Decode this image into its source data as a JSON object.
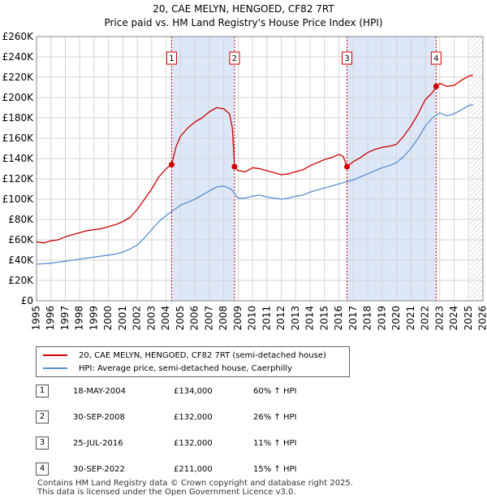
{
  "chart_data": {
    "type": "line",
    "title": "20, CAE MELYN, HENGOED, CF82 7RT",
    "subtitle": "Price paid vs. HM Land Registry's House Price Index (HPI)",
    "xlim": [
      1995,
      2026
    ],
    "ylim": [
      0,
      260000
    ],
    "y_ticks": [
      0,
      20000,
      40000,
      60000,
      80000,
      100000,
      120000,
      140000,
      160000,
      180000,
      200000,
      220000,
      240000,
      260000
    ],
    "y_tick_labels": [
      "£0",
      "£20K",
      "£40K",
      "£60K",
      "£80K",
      "£100K",
      "£120K",
      "£140K",
      "£160K",
      "£180K",
      "£200K",
      "£220K",
      "£240K",
      "£260K"
    ],
    "x_ticks": [
      1995,
      1996,
      1997,
      1998,
      1999,
      2000,
      2001,
      2002,
      2003,
      2004,
      2005,
      2006,
      2007,
      2008,
      2009,
      2010,
      2011,
      2012,
      2013,
      2014,
      2015,
      2016,
      2017,
      2018,
      2019,
      2020,
      2021,
      2022,
      2023,
      2024,
      2025,
      2026
    ],
    "x_tick_labels": [
      "1995",
      "1996",
      "1997",
      "1998",
      "1999",
      "2000",
      "2001",
      "2002",
      "2003",
      "2004",
      "2005",
      "2006",
      "2007",
      "2008",
      "2009",
      "2010",
      "2011",
      "2012",
      "2013",
      "2014",
      "2015",
      "2016",
      "2017",
      "2018",
      "2019",
      "2020",
      "2021",
      "2022",
      "2023",
      "2024",
      "2025",
      "2026"
    ],
    "grid": true,
    "shaded_periods": [
      [
        2004.38,
        2008.75
      ],
      [
        2016.56,
        2022.75
      ]
    ],
    "future_hatch_from": 2025.1,
    "series": [
      {
        "name": "20, CAE MELYN, HENGOED, CF82 7RT (semi-detached house)",
        "color": "#cc0000",
        "x": [
          1995.0,
          1995.5,
          1996.0,
          1996.5,
          1997.0,
          1997.5,
          1998.0,
          1998.5,
          1999.0,
          1999.5,
          2000.0,
          2000.5,
          2001.0,
          2001.5,
          2002.0,
          2002.5,
          2003.0,
          2003.5,
          2004.0,
          2004.38,
          2004.38,
          2004.7,
          2005.0,
          2005.5,
          2006.0,
          2006.5,
          2007.0,
          2007.5,
          2008.0,
          2008.4,
          2008.6,
          2008.75,
          2008.75,
          2009.0,
          2009.5,
          2010.0,
          2010.5,
          2011.0,
          2011.5,
          2012.0,
          2012.5,
          2013.0,
          2013.5,
          2014.0,
          2014.5,
          2015.0,
          2015.5,
          2016.0,
          2016.3,
          2016.56,
          2016.56,
          2017.0,
          2017.5,
          2018.0,
          2018.5,
          2019.0,
          2019.5,
          2020.0,
          2020.5,
          2021.0,
          2021.5,
          2022.0,
          2022.5,
          2022.75,
          2022.75,
          2023.0,
          2023.5,
          2024.0,
          2024.5,
          2025.0,
          2025.3
        ],
        "values": [
          58000,
          57000,
          59000,
          60000,
          63000,
          65000,
          67000,
          69000,
          70000,
          71000,
          73000,
          75000,
          78000,
          82000,
          90000,
          100000,
          110000,
          122000,
          130000,
          134000,
          134000,
          152000,
          162000,
          170000,
          176000,
          180000,
          186000,
          190000,
          189000,
          184000,
          170000,
          132000,
          132000,
          128000,
          127000,
          131000,
          130000,
          128000,
          126000,
          124000,
          125000,
          127000,
          129000,
          133000,
          136000,
          139000,
          141000,
          144000,
          142000,
          132000,
          132000,
          137000,
          141000,
          146000,
          149000,
          151000,
          152000,
          154000,
          162000,
          172000,
          184000,
          198000,
          205000,
          211000,
          211000,
          214000,
          211000,
          212000,
          217000,
          221000,
          222000
        ]
      },
      {
        "name": "HPI: Average price, semi-detached house, Caerphilly",
        "color": "#5b8fd0",
        "x": [
          1995.0,
          1995.5,
          1996.0,
          1996.5,
          1997.0,
          1997.5,
          1998.0,
          1998.5,
          1999.0,
          1999.5,
          2000.0,
          2000.5,
          2001.0,
          2001.5,
          2002.0,
          2002.5,
          2003.0,
          2003.5,
          2004.0,
          2004.5,
          2005.0,
          2005.5,
          2006.0,
          2006.5,
          2007.0,
          2007.5,
          2008.0,
          2008.5,
          2009.0,
          2009.5,
          2010.0,
          2010.5,
          2011.0,
          2011.5,
          2012.0,
          2012.5,
          2013.0,
          2013.5,
          2014.0,
          2014.5,
          2015.0,
          2015.5,
          2016.0,
          2016.5,
          2017.0,
          2017.5,
          2018.0,
          2018.5,
          2019.0,
          2019.5,
          2020.0,
          2020.5,
          2021.0,
          2021.5,
          2022.0,
          2022.5,
          2023.0,
          2023.5,
          2024.0,
          2024.5,
          2025.0,
          2025.3
        ],
        "values": [
          36000,
          36500,
          37000,
          38000,
          39000,
          40000,
          41000,
          42000,
          43000,
          44000,
          45000,
          46000,
          48000,
          51000,
          55000,
          62000,
          70000,
          78000,
          84000,
          89000,
          94000,
          97000,
          100000,
          104000,
          108000,
          112000,
          113000,
          110000,
          101000,
          101000,
          103000,
          104000,
          102000,
          101000,
          100000,
          101000,
          103000,
          104000,
          107000,
          109000,
          111000,
          113000,
          115000,
          117000,
          119000,
          122000,
          125000,
          128000,
          131000,
          133000,
          136000,
          142000,
          150000,
          160000,
          172000,
          180000,
          185000,
          182000,
          184000,
          188000,
          192000,
          193000
        ]
      }
    ],
    "sale_markers": [
      {
        "label": "1",
        "x": 2004.38,
        "value": 134000
      },
      {
        "label": "2",
        "x": 2008.75,
        "value": 132000
      },
      {
        "label": "3",
        "x": 2016.56,
        "value": 132000
      },
      {
        "label": "4",
        "x": 2022.75,
        "value": 211000
      }
    ]
  },
  "legend": {
    "red_label": "20, CAE MELYN, HENGOED, CF82 7RT (semi-detached house)",
    "blue_label": "HPI: Average price, semi-detached house, Caerphilly"
  },
  "sales": [
    {
      "num": "1",
      "date": "18-MAY-2004",
      "price": "£134,000",
      "hpi": "60% ↑ HPI"
    },
    {
      "num": "2",
      "date": "30-SEP-2008",
      "price": "£132,000",
      "hpi": "26% ↑ HPI"
    },
    {
      "num": "3",
      "date": "25-JUL-2016",
      "price": "£132,000",
      "hpi": "11% ↑ HPI"
    },
    {
      "num": "4",
      "date": "30-SEP-2022",
      "price": "£211,000",
      "hpi": "15% ↑ HPI"
    }
  ],
  "footer": {
    "line1": "Contains HM Land Registry data © Crown copyright and database right 2025.",
    "line2": "This data is licensed under the Open Government Licence v3.0."
  }
}
